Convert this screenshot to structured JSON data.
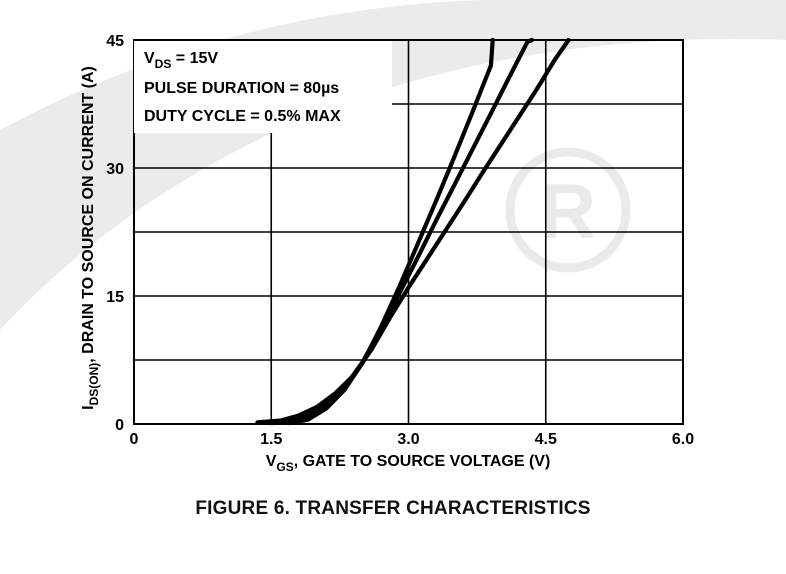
{
  "chart_data": {
    "type": "line",
    "title": "FIGURE 6.  TRANSFER CHARACTERISTICS",
    "conditions": {
      "vds_prefix": "V",
      "vds_sub": "DS",
      "vds_suffix": " = 15V",
      "pulse_prefix": "PULSE DURATION = 80",
      "pulse_unit": "µs",
      "duty": "DUTY CYCLE = 0.5% MAX"
    },
    "xlabel": {
      "prefix": "V",
      "sub": "GS",
      "suffix": ", GATE TO SOURCE VOLTAGE (V)"
    },
    "ylabel": {
      "prefix": "I",
      "sub": "DS(ON)",
      "suffix": ", DRAIN TO SOURCE ON CURRENT (A)"
    },
    "xlim": [
      0,
      6.0
    ],
    "ylim": [
      0,
      45
    ],
    "x_ticks": [
      0,
      1.5,
      3.0,
      4.5,
      6.0
    ],
    "x_tick_labels": [
      "0",
      "1.5",
      "3.0",
      "4.5",
      "6.0"
    ],
    "y_ticks": [
      0,
      15,
      30,
      45
    ],
    "y_tick_labels": [
      "0",
      "15",
      "30",
      "45"
    ],
    "x_grid": [
      0,
      1.5,
      3.0,
      4.5,
      6.0
    ],
    "y_grid": [
      0,
      7.5,
      15,
      22.5,
      30,
      37.5,
      45
    ],
    "grid": true,
    "legend_position": "top-left",
    "series": [
      {
        "x": [
          1.35,
          1.6,
          1.8,
          2.0,
          2.2,
          2.4,
          2.6,
          2.8,
          3.0,
          3.2,
          3.4,
          3.6,
          3.8,
          4.0,
          4.2,
          4.4,
          4.6,
          4.75
        ],
        "y": [
          0.2,
          0.4,
          1.0,
          2.0,
          3.6,
          5.7,
          8.8,
          12.5,
          16.0,
          19.3,
          22.6,
          25.9,
          29.3,
          32.6,
          35.9,
          39.2,
          42.7,
          45.0
        ]
      },
      {
        "x": [
          1.5,
          1.7,
          1.9,
          2.1,
          2.3,
          2.5,
          2.7,
          2.9,
          3.1,
          3.3,
          3.5,
          3.7,
          3.9,
          4.1,
          4.3,
          4.35
        ],
        "y": [
          0.1,
          0.3,
          1.0,
          2.3,
          4.3,
          7.3,
          11.2,
          15.3,
          19.5,
          23.8,
          28.0,
          32.2,
          36.4,
          40.6,
          44.8,
          45.0
        ]
      },
      {
        "x": [
          1.7,
          1.9,
          2.1,
          2.3,
          2.5,
          2.7,
          2.9,
          3.1,
          3.3,
          3.5,
          3.7,
          3.9,
          3.92
        ],
        "y": [
          0.1,
          0.5,
          1.8,
          4.0,
          7.2,
          11.4,
          16.1,
          21.1,
          26.1,
          31.3,
          36.6,
          42.0,
          45.0
        ]
      }
    ]
  }
}
